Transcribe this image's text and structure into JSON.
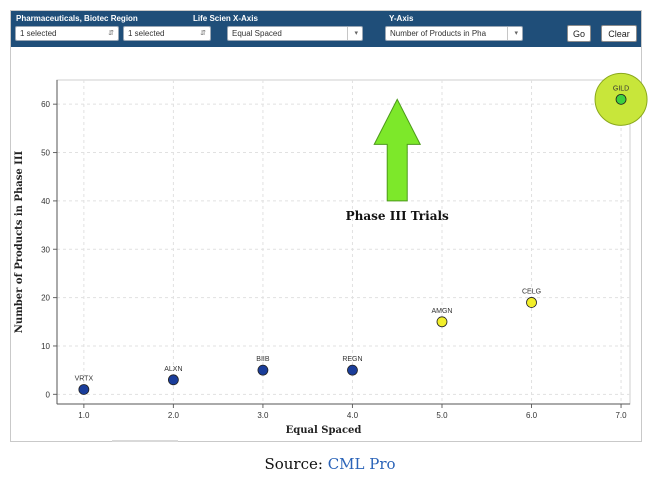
{
  "toolbar": {
    "region_label": "Pharmaceuticals, Biotec Region",
    "xaxis_label": "Life Scien X-Axis",
    "yaxis_label": "Y-Axis",
    "filter1_value": "1 selected",
    "filter2_value": "1 selected",
    "xaxis_value": "Equal Spaced",
    "yaxis_value": "Number of Products in Pha",
    "go_label": "Go",
    "clear_label": "Clear",
    "bg_color": "#1f4e79"
  },
  "chart_data": {
    "type": "scatter",
    "xlabel": "Equal Spaced",
    "ylabel": "Number of Products in Phase III",
    "xlim": [
      0.7,
      7.1
    ],
    "ylim": [
      -2,
      65
    ],
    "xticks": [
      "1.0",
      "2.0",
      "3.0",
      "4.0",
      "5.0",
      "6.0",
      "7.0"
    ],
    "yticks": [
      "0",
      "10",
      "20",
      "30",
      "40",
      "50",
      "60"
    ],
    "grid": true,
    "points": [
      {
        "label": "VRTX",
        "x": 1,
        "y": 1,
        "color": "#1a3d9a"
      },
      {
        "label": "ALXN",
        "x": 2,
        "y": 3,
        "color": "#1a3d9a"
      },
      {
        "label": "BIIB",
        "x": 3,
        "y": 5,
        "color": "#1a3d9a"
      },
      {
        "label": "REGN",
        "x": 4,
        "y": 5,
        "color": "#1a3d9a"
      },
      {
        "label": "AMGN",
        "x": 5,
        "y": 15,
        "color": "#f2ee2a"
      },
      {
        "label": "CELG",
        "x": 6,
        "y": 19,
        "color": "#f2ee2a"
      },
      {
        "label": "GILD",
        "x": 7,
        "y": 61,
        "color": "#3ed13e"
      }
    ],
    "annotation": "Phase III Trials",
    "arrow_color": "#7de82a",
    "highlight_color": "#c8e63a"
  },
  "source": {
    "prefix": "Source: ",
    "link": "CML Pro"
  }
}
